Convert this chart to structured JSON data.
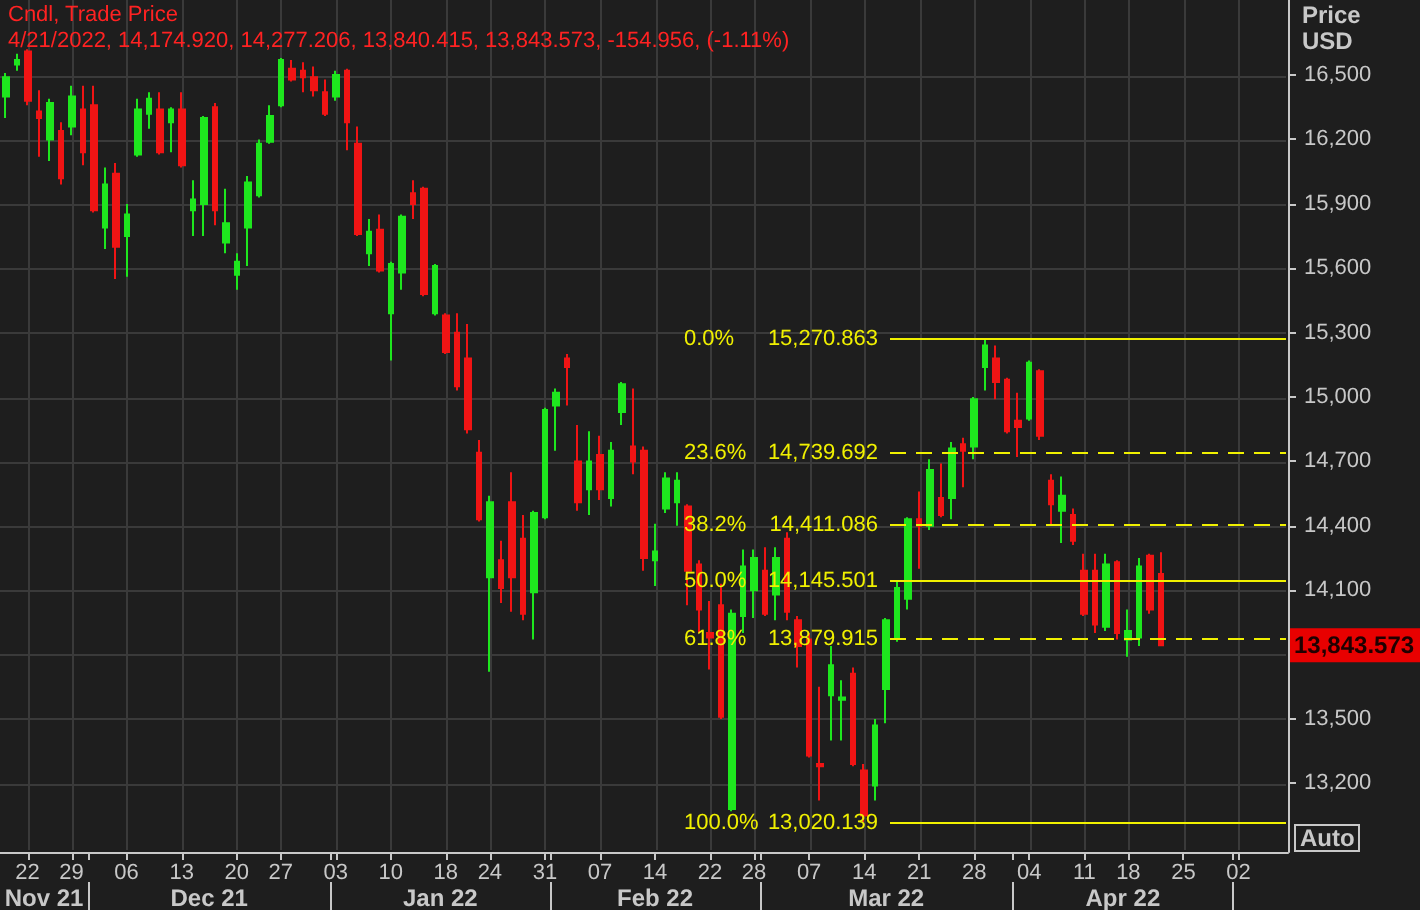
{
  "chart_data": {
    "type": "candlestick",
    "title": "Cndl, Trade Price",
    "subtitle": "4/21/2022, 14,174.920, 14,277.206, 13,840.415, 13,843.573, -154.956, (-1.11%)",
    "ylabel": "Price USD",
    "categories": [
      null,
      null,
      "22",
      null,
      null,
      null,
      "29",
      null,
      null,
      null,
      null,
      "06",
      null,
      null,
      null,
      null,
      "13",
      null,
      null,
      null,
      null,
      "20",
      null,
      null,
      null,
      "27",
      null,
      null,
      null,
      null,
      "03",
      null,
      null,
      null,
      null,
      "10",
      null,
      null,
      null,
      null,
      "18",
      null,
      null,
      null,
      "24",
      null,
      null,
      null,
      null,
      "31",
      null,
      null,
      null,
      null,
      "07",
      null,
      null,
      null,
      null,
      "14",
      null,
      null,
      null,
      null,
      "22",
      null,
      null,
      null,
      "28",
      null,
      null,
      null,
      null,
      "07",
      null,
      null,
      null,
      null,
      "14",
      null,
      null,
      null,
      null,
      "21",
      null,
      null,
      null,
      null,
      "28",
      null,
      null,
      null,
      null,
      "04",
      null,
      null,
      null,
      null,
      "11",
      null,
      null,
      null,
      "18",
      null,
      null,
      null,
      null,
      "25",
      null,
      null,
      null,
      null,
      "02",
      null,
      null,
      null,
      null
    ],
    "ohlc": [
      [
        16400,
        16510,
        16300,
        16490
      ],
      [
        16550,
        16600,
        16520,
        16570
      ],
      [
        16610,
        16620,
        16360,
        16380
      ],
      [
        16330,
        16430,
        16120,
        16300
      ],
      [
        16200,
        16390,
        16100,
        16370
      ],
      [
        16240,
        16280,
        15990,
        16020
      ],
      [
        16260,
        16450,
        16220,
        16400
      ],
      [
        16340,
        16450,
        16080,
        16140
      ],
      [
        16360,
        16450,
        15860,
        15870
      ],
      [
        15790,
        16070,
        15690,
        15990
      ],
      [
        16040,
        16090,
        15550,
        15700
      ],
      [
        15750,
        15900,
        15560,
        15850
      ],
      [
        16130,
        16390,
        16120,
        16340
      ],
      [
        16320,
        16420,
        16250,
        16390
      ],
      [
        16340,
        16420,
        16130,
        16140
      ],
      [
        16280,
        16350,
        16140,
        16340
      ],
      [
        16340,
        16420,
        16070,
        16080
      ],
      [
        15870,
        16010,
        15750,
        15920
      ],
      [
        15900,
        16310,
        15750,
        16300
      ],
      [
        16350,
        16370,
        15800,
        15870
      ],
      [
        15720,
        15970,
        15670,
        15810
      ],
      [
        15570,
        15670,
        15500,
        15630
      ],
      [
        15790,
        16030,
        15610,
        16000
      ],
      [
        15940,
        16200,
        15930,
        16180
      ],
      [
        16190,
        16360,
        16180,
        16310
      ],
      [
        16360,
        16580,
        16350,
        16570
      ],
      [
        16530,
        16570,
        16470,
        16480
      ],
      [
        16520,
        16560,
        16420,
        16490
      ],
      [
        16490,
        16540,
        16400,
        16430
      ],
      [
        16420,
        16480,
        16310,
        16320
      ],
      [
        16400,
        16520,
        16380,
        16500
      ],
      [
        16520,
        16530,
        16150,
        16280
      ],
      [
        16180,
        16260,
        15750,
        15760
      ],
      [
        15670,
        15830,
        15610,
        15770
      ],
      [
        15780,
        15850,
        15580,
        15590
      ],
      [
        15390,
        15630,
        15170,
        15620
      ],
      [
        15580,
        15850,
        15500,
        15840
      ],
      [
        15950,
        16010,
        15830,
        15900
      ],
      [
        15970,
        15980,
        15470,
        15480
      ],
      [
        15390,
        15620,
        15380,
        15610
      ],
      [
        15380,
        15390,
        15200,
        15210
      ],
      [
        15300,
        15390,
        15030,
        15050
      ],
      [
        15180,
        15340,
        14830,
        14850
      ],
      [
        14740,
        14800,
        14420,
        14430
      ],
      [
        14160,
        14540,
        13720,
        14510
      ],
      [
        14240,
        14330,
        14040,
        14110
      ],
      [
        14510,
        14650,
        14000,
        14160
      ],
      [
        14340,
        14450,
        13960,
        13990
      ],
      [
        14090,
        14470,
        13870,
        14460
      ],
      [
        14440,
        14950,
        14430,
        14940
      ],
      [
        14960,
        15040,
        14750,
        15020
      ],
      [
        15180,
        15200,
        14960,
        15140
      ],
      [
        14700,
        14870,
        14470,
        14510
      ],
      [
        14570,
        14840,
        14450,
        14700
      ],
      [
        14730,
        14820,
        14520,
        14570
      ],
      [
        14530,
        14790,
        14490,
        14750
      ],
      [
        14930,
        15070,
        14870,
        15060
      ],
      [
        14770,
        15040,
        14640,
        14700
      ],
      [
        14750,
        14770,
        14190,
        14250
      ],
      [
        14240,
        14410,
        14120,
        14280
      ],
      [
        14480,
        14650,
        14460,
        14620
      ],
      [
        14510,
        14650,
        14400,
        14610
      ],
      [
        14490,
        14500,
        14030,
        14190
      ],
      [
        14220,
        14240,
        13900,
        14010
      ],
      [
        13900,
        14050,
        13730,
        13880
      ],
      [
        14030,
        14130,
        13500,
        13510
      ],
      [
        13080,
        14010,
        13070,
        13990
      ],
      [
        13980,
        14290,
        13900,
        14210
      ],
      [
        14100,
        14290,
        13970,
        14250
      ],
      [
        14190,
        14300,
        13980,
        13990
      ],
      [
        14080,
        14300,
        13960,
        14250
      ],
      [
        14340,
        14370,
        13960,
        14000
      ],
      [
        13960,
        13980,
        13740,
        13840
      ],
      [
        13870,
        13900,
        13320,
        13330
      ],
      [
        13290,
        13650,
        13120,
        13280
      ],
      [
        13610,
        13840,
        13400,
        13750
      ],
      [
        13590,
        13680,
        13400,
        13600
      ],
      [
        13710,
        13740,
        13280,
        13290
      ],
      [
        13260,
        13290,
        13020.139,
        13050
      ],
      [
        13190,
        13500,
        13120,
        13470
      ],
      [
        13640,
        13970,
        13480,
        13960
      ],
      [
        13880,
        14140,
        13860,
        14110
      ],
      [
        14060,
        14440,
        14010,
        14430
      ],
      [
        14430,
        14560,
        14200,
        14400
      ],
      [
        14400,
        14710,
        14380,
        14660
      ],
      [
        14530,
        14690,
        14440,
        14450
      ],
      [
        14530,
        14790,
        14430,
        14760
      ],
      [
        14780,
        14810,
        14580,
        14750
      ],
      [
        14770,
        15000,
        14710,
        14990
      ],
      [
        15140,
        15270.863,
        15030,
        15240
      ],
      [
        15180,
        15240,
        14990,
        15070
      ],
      [
        15080,
        15090,
        14830,
        14840
      ],
      [
        14890,
        15020,
        14720,
        14860
      ],
      [
        14900,
        15170,
        14890,
        15160
      ],
      [
        15120,
        15130,
        14800,
        14820
      ],
      [
        14610,
        14640,
        14400,
        14500
      ],
      [
        14470,
        14630,
        14320,
        14540
      ],
      [
        14450,
        14480,
        14310,
        14330
      ],
      [
        14190,
        14270,
        13980,
        13990
      ],
      [
        14190,
        14270,
        13900,
        13940
      ],
      [
        13930,
        14270,
        13910,
        14220
      ],
      [
        14230,
        14240,
        13870,
        13900
      ],
      [
        13870,
        14010,
        13790,
        13910
      ],
      [
        13880,
        14250,
        13840,
        14210
      ],
      [
        14260,
        14270,
        13990,
        14010
      ],
      [
        14174.92,
        14277.206,
        13840.415,
        13843.573
      ],
      null,
      null,
      null,
      null,
      null,
      null,
      null,
      null,
      null,
      null,
      null
    ],
    "colors": [
      "#1ee61e",
      "#1ee61e",
      "#f01414",
      "#f01414",
      "#1ee61e",
      "#f01414",
      "#1ee61e",
      "#f01414",
      "#f01414",
      "#1ee61e",
      "#f01414",
      "#1ee61e",
      "#1ee61e",
      "#1ee61e",
      "#f01414",
      "#1ee61e",
      "#f01414",
      "#1ee61e",
      "#1ee61e",
      "#f01414",
      "#1ee61e",
      "#1ee61e",
      "#1ee61e",
      "#1ee61e",
      "#1ee61e",
      "#1ee61e",
      "#f01414",
      "#f01414",
      "#f01414",
      "#f01414",
      "#1ee61e",
      "#f01414",
      "#f01414",
      "#1ee61e",
      "#f01414",
      "#1ee61e",
      "#1ee61e",
      "#f01414",
      "#f01414",
      "#1ee61e",
      "#f01414",
      "#f01414",
      "#f01414",
      "#f01414",
      "#1ee61e",
      "#f01414",
      "#f01414",
      "#f01414",
      "#1ee61e",
      "#1ee61e",
      "#1ee61e",
      "#f01414",
      "#f01414",
      "#1ee61e",
      "#f01414",
      "#1ee61e",
      "#1ee61e",
      "#f01414",
      "#f01414",
      "#1ee61e",
      "#1ee61e",
      "#1ee61e",
      "#f01414",
      "#f01414",
      "#f01414",
      "#f01414",
      "#1ee61e",
      "#1ee61e",
      "#1ee61e",
      "#f01414",
      "#1ee61e",
      "#f01414",
      "#f01414",
      "#f01414",
      "#f01414",
      "#1ee61e",
      "#1ee61e",
      "#f01414",
      "#f01414",
      "#1ee61e",
      "#1ee61e",
      "#1ee61e",
      "#1ee61e",
      "#f01414",
      "#1ee61e",
      "#f01414",
      "#1ee61e",
      "#f01414",
      "#1ee61e",
      "#1ee61e",
      "#f01414",
      "#f01414",
      "#f01414",
      "#1ee61e",
      "#f01414",
      "#f01414",
      "#1ee61e",
      "#f01414",
      "#f01414",
      "#f01414",
      "#1ee61e",
      "#f01414",
      "#1ee61e",
      "#1ee61e",
      "#f01414",
      "#f01414",
      null,
      null,
      null,
      null,
      null,
      null,
      null,
      null,
      null,
      null,
      null
    ],
    "ylim": [
      12880,
      16850
    ],
    "yticks": [
      {
        "value": 13200,
        "label": "13,200"
      },
      {
        "value": 13500,
        "label": "13,500"
      },
      {
        "value": 13800,
        "label": null
      },
      {
        "value": 14100,
        "label": "14,100"
      },
      {
        "value": 14400,
        "label": "14,400"
      },
      {
        "value": 14700,
        "label": "14,700"
      },
      {
        "value": 15000,
        "label": "15,000"
      },
      {
        "value": 15300,
        "label": "15,300"
      },
      {
        "value": 15600,
        "label": "15,600"
      },
      {
        "value": 15900,
        "label": "15,900"
      },
      {
        "value": 16200,
        "label": "16,200"
      },
      {
        "value": 16500,
        "label": "16,500"
      }
    ],
    "grid": true,
    "ref_lines": [
      {
        "axis": "y",
        "value": 15270.863,
        "label": "0.0% 15,270.863",
        "color": "#f0f000",
        "line_style": "solid"
      },
      {
        "axis": "y",
        "value": 14739.692,
        "label": "23.6% 14,739.692",
        "color": "#f0f000",
        "line_style": "dashed"
      },
      {
        "axis": "y",
        "value": 14411.086,
        "label": "38.2% 14,411.086",
        "color": "#f0f000",
        "line_style": "dashed"
      },
      {
        "axis": "y",
        "value": 14145.501,
        "label": "50.0% 14,145.501",
        "color": "#f0f000",
        "line_style": "solid"
      },
      {
        "axis": "y",
        "value": 13879.915,
        "label": "61.8% 13,879.915",
        "color": "#f0f000",
        "line_style": "dashed"
      },
      {
        "axis": "y",
        "value": 13020.139,
        "label": "100.0% 13,020.139",
        "color": "#f0f000",
        "line_style": "solid"
      }
    ],
    "annotations": [
      "Nov 21",
      "Dec 21",
      "Jan 22",
      "Feb 22",
      "Mar 22",
      "Apr 22",
      "13,843.573",
      "Auto"
    ]
  }
}
